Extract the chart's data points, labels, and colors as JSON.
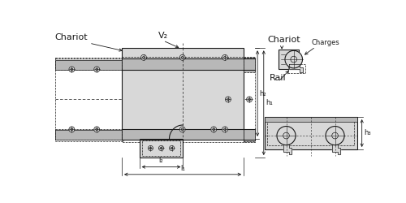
{
  "bg_color": "#ffffff",
  "line_color": "#1a1a1a",
  "labels": {
    "chariot_left": "Chariot",
    "v2": "V₂",
    "l1": "l₁",
    "l2": "l₂",
    "h1": "h₁",
    "h2": "h₂",
    "chariot_right": "Chariot",
    "charges": "Charges",
    "rail": "Rail",
    "h3": "h₃"
  },
  "gray_light": "#d8d8d8",
  "gray_mid": "#b8b8b8",
  "gray_dark": "#888888",
  "hatch_color": "#999999"
}
